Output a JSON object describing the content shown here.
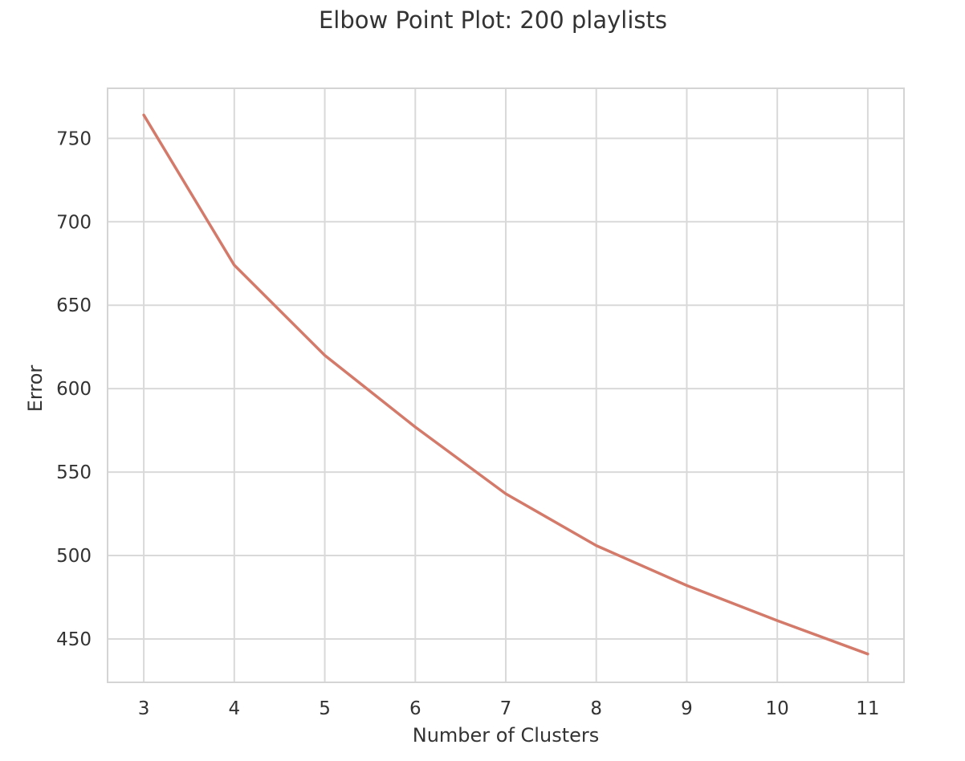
{
  "chart_data": {
    "type": "line",
    "title": "Elbow Point Plot: 200 playlists",
    "xlabel": "Number of Clusters",
    "ylabel": "Error",
    "x": [
      3,
      4,
      5,
      6,
      7,
      8,
      9,
      10,
      11
    ],
    "series": [
      {
        "values": [
          764,
          674,
          620,
          577,
          537,
          506,
          482,
          461,
          441
        ],
        "color": "#d47a6a"
      }
    ],
    "xticks": [
      "3",
      "4",
      "5",
      "6",
      "7",
      "8",
      "9",
      "10",
      "11"
    ],
    "yticks": [
      "450",
      "500",
      "550",
      "600",
      "650",
      "700",
      "750"
    ],
    "xlim": [
      2.6,
      11.4
    ],
    "ylim": [
      424,
      780
    ],
    "grid": true,
    "legend": "none"
  }
}
